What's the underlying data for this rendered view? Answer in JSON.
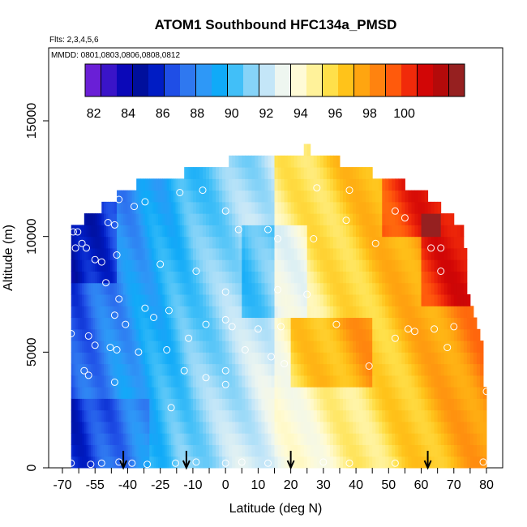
{
  "chart_data": {
    "type": "heatmap",
    "title": "ATOM1 Southbound HFC134a_PMSD",
    "notes": [
      "Flts: 2,3,4,5,6",
      "MMDD: 0801,0803,0806,0808,0812"
    ],
    "xlabel": "Latitude (deg N)",
    "ylabel": "Altitude (m)",
    "xlim": [
      -70,
      85
    ],
    "ylim": [
      0,
      18000
    ],
    "x_ticks": [
      -70,
      -55,
      -40,
      -25,
      -10,
      0,
      10,
      20,
      30,
      40,
      50,
      60,
      70,
      80
    ],
    "y_ticks": [
      0,
      5000,
      10000,
      15000
    ],
    "colorbar": {
      "min": 81.5,
      "max": 103.5,
      "tick_values": [
        82,
        84,
        86,
        88,
        90,
        92,
        94,
        96,
        98,
        100
      ],
      "colors": [
        "#6a1fd6",
        "#3a14c8",
        "#0b08b8",
        "#000f9c",
        "#001cc4",
        "#1f4ee6",
        "#2f78f0",
        "#2e98f7",
        "#10aaf8",
        "#41bff8",
        "#86d3f8",
        "#c4e6f8",
        "#eef6f0",
        "#fffbd6",
        "#fff29a",
        "#ffe04a",
        "#ffc31a",
        "#ffa510",
        "#ff830f",
        "#ff5a0c",
        "#f12a0a",
        "#d20606",
        "#b40a0a",
        "#962020"
      ],
      "position": "top"
    },
    "altitude_bins": [
      0,
      500,
      1000,
      1500,
      2000,
      2500,
      3000,
      3500,
      4000,
      4500,
      5000,
      5500,
      6000,
      6500,
      7000,
      7500,
      8000,
      8500,
      9000,
      9500,
      10000,
      10500,
      11000,
      11500,
      12000,
      12500,
      13000,
      13500
    ],
    "field_extent": [
      {
        "alt_bin": 0,
        "lat": [
          -66,
          80
        ]
      },
      {
        "alt_bin": 500,
        "lat": [
          -66,
          80
        ]
      },
      {
        "alt_bin": 1000,
        "lat": [
          -66,
          80
        ]
      },
      {
        "alt_bin": 1500,
        "lat": [
          -66,
          80
        ]
      },
      {
        "alt_bin": 2000,
        "lat": [
          -66,
          80
        ]
      },
      {
        "alt_bin": 2500,
        "lat": [
          -66,
          80
        ]
      },
      {
        "alt_bin": 3000,
        "lat": [
          -66,
          80
        ]
      },
      {
        "alt_bin": 3500,
        "lat": [
          -66,
          79
        ]
      },
      {
        "alt_bin": 4000,
        "lat": [
          -66,
          79
        ]
      },
      {
        "alt_bin": 4500,
        "lat": [
          -66,
          79
        ]
      },
      {
        "alt_bin": 5000,
        "lat": [
          -66,
          79
        ]
      },
      {
        "alt_bin": 5500,
        "lat": [
          -66,
          78
        ]
      },
      {
        "alt_bin": 6000,
        "lat": [
          -66,
          77
        ]
      },
      {
        "alt_bin": 6500,
        "lat": [
          -66,
          76
        ]
      },
      {
        "alt_bin": 7000,
        "lat": [
          -66,
          75
        ]
      },
      {
        "alt_bin": 7500,
        "lat": [
          -66,
          74
        ]
      },
      {
        "alt_bin": 8000,
        "lat": [
          -66,
          74
        ]
      },
      {
        "alt_bin": 8500,
        "lat": [
          -66,
          74
        ]
      },
      {
        "alt_bin": 9000,
        "lat": [
          -66,
          74
        ]
      },
      {
        "alt_bin": 9500,
        "lat": [
          -66,
          73
        ]
      },
      {
        "alt_bin": 10000,
        "lat": [
          -66,
          73
        ]
      },
      {
        "alt_bin": 10500,
        "lat": [
          -60,
          70
        ]
      },
      {
        "alt_bin": 11000,
        "lat": [
          -52,
          66
        ]
      },
      {
        "alt_bin": 11500,
        "lat": [
          -45,
          62
        ]
      },
      {
        "alt_bin": 12000,
        "lat": [
          -36,
          55
        ]
      },
      {
        "alt_bin": 12500,
        "lat": [
          -14,
          45
        ]
      },
      {
        "alt_bin": 13000,
        "lat": [
          1,
          35
        ]
      },
      {
        "alt_bin": 13500,
        "lat": [
          24,
          26
        ]
      }
    ],
    "sample_points": [
      {
        "lat": -66,
        "alt": 200
      },
      {
        "lat": -57,
        "alt": 150
      },
      {
        "lat": -52,
        "alt": 200
      },
      {
        "lat": -44,
        "alt": 250
      },
      {
        "lat": -38,
        "alt": 200
      },
      {
        "lat": -31,
        "alt": 150
      },
      {
        "lat": -18,
        "alt": 200
      },
      {
        "lat": -9,
        "alt": 250
      },
      {
        "lat": 0,
        "alt": 200
      },
      {
        "lat": 5,
        "alt": 250
      },
      {
        "lat": 13,
        "alt": 200
      },
      {
        "lat": 30,
        "alt": 250
      },
      {
        "lat": 38,
        "alt": 200
      },
      {
        "lat": 52,
        "alt": 200
      },
      {
        "lat": 79,
        "alt": 250
      },
      {
        "lat": -20,
        "alt": 2600
      },
      {
        "lat": -46,
        "alt": 3700
      },
      {
        "lat": -58,
        "alt": 4000
      },
      {
        "lat": -60,
        "alt": 4200
      },
      {
        "lat": -14,
        "alt": 4200
      },
      {
        "lat": -6,
        "alt": 3900
      },
      {
        "lat": 0,
        "alt": 3600
      },
      {
        "lat": 0,
        "alt": 4200
      },
      {
        "lat": 18,
        "alt": 4500
      },
      {
        "lat": 44,
        "alt": 4400
      },
      {
        "lat": 80,
        "alt": 3300
      },
      {
        "lat": -55,
        "alt": 5300
      },
      {
        "lat": -48,
        "alt": 5200
      },
      {
        "lat": -45,
        "alt": 5100
      },
      {
        "lat": -35,
        "alt": 5000
      },
      {
        "lat": -22,
        "alt": 5100
      },
      {
        "lat": 6,
        "alt": 5100
      },
      {
        "lat": 14,
        "alt": 4800
      },
      {
        "lat": 52,
        "alt": 5600
      },
      {
        "lat": 68,
        "alt": 5200
      },
      {
        "lat": -66,
        "alt": 5800
      },
      {
        "lat": -58,
        "alt": 5700
      },
      {
        "lat": -12,
        "alt": 5600
      },
      {
        "lat": 58,
        "alt": 5900
      },
      {
        "lat": 64,
        "alt": 6000
      },
      {
        "lat": -41,
        "alt": 6200
      },
      {
        "lat": -6,
        "alt": 6200
      },
      {
        "lat": 0,
        "alt": 6400
      },
      {
        "lat": 2,
        "alt": 6100
      },
      {
        "lat": 10,
        "alt": 6000
      },
      {
        "lat": 17,
        "alt": 6100
      },
      {
        "lat": 34,
        "alt": 6200
      },
      {
        "lat": 56,
        "alt": 6000
      },
      {
        "lat": 70,
        "alt": 6100
      },
      {
        "lat": -32,
        "alt": 6900
      },
      {
        "lat": -21,
        "alt": 6800
      },
      {
        "lat": -44,
        "alt": 7300
      },
      {
        "lat": 0,
        "alt": 7600
      },
      {
        "lat": 16,
        "alt": 7700
      },
      {
        "lat": 25,
        "alt": 7500
      },
      {
        "lat": -46,
        "alt": 6600
      },
      {
        "lat": -28,
        "alt": 6500
      },
      {
        "lat": -50,
        "alt": 8000
      },
      {
        "lat": -25,
        "alt": 8800
      },
      {
        "lat": -9,
        "alt": 8500
      },
      {
        "lat": 66,
        "alt": 8500
      },
      {
        "lat": -64,
        "alt": 9500
      },
      {
        "lat": -61,
        "alt": 9700
      },
      {
        "lat": -59,
        "alt": 9500
      },
      {
        "lat": -55,
        "alt": 9000
      },
      {
        "lat": -52,
        "alt": 8900
      },
      {
        "lat": -45,
        "alt": 9200
      },
      {
        "lat": 16,
        "alt": 9900
      },
      {
        "lat": 27,
        "alt": 9900
      },
      {
        "lat": 46,
        "alt": 9700
      },
      {
        "lat": 63,
        "alt": 9500
      },
      {
        "lat": 66,
        "alt": 9500
      },
      {
        "lat": -65,
        "alt": 10200
      },
      {
        "lat": -63,
        "alt": 10200
      },
      {
        "lat": -46,
        "alt": 10500
      },
      {
        "lat": 4,
        "alt": 10300
      },
      {
        "lat": 13,
        "alt": 10300
      },
      {
        "lat": 37,
        "alt": 10700
      },
      {
        "lat": -37,
        "alt": 11300
      },
      {
        "lat": -32,
        "alt": 11500
      },
      {
        "lat": -44,
        "alt": 11600
      },
      {
        "lat": 0,
        "alt": 11100
      },
      {
        "lat": 52,
        "alt": 11100
      },
      {
        "lat": -16,
        "alt": 11900
      },
      {
        "lat": -7,
        "alt": 12000
      },
      {
        "lat": 28,
        "alt": 12100
      },
      {
        "lat": 38,
        "alt": 12000
      },
      {
        "lat": 55,
        "alt": 10800
      },
      {
        "lat": -49,
        "alt": 10600
      }
    ],
    "arrows_at_latitude": [
      -42,
      -13,
      20,
      62
    ]
  }
}
